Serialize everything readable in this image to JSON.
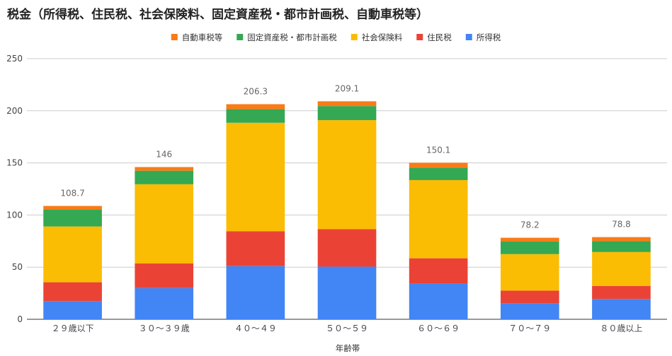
{
  "chart_data": {
    "type": "bar",
    "stacked": true,
    "title": "税金（所得税、住民税、社会保険料、固定資産税・都市計画税、自動車税等）",
    "xlabel": "年齢帯",
    "ylabel": "",
    "ylim": [
      0,
      250
    ],
    "yticks": [
      0,
      50,
      100,
      150,
      200,
      250
    ],
    "grid": true,
    "legend_position": "top",
    "categories": [
      "２９歳以下",
      "３０〜３９歳",
      "４０〜４９",
      "５０〜５９",
      "６０〜６９",
      "７０〜７９",
      "８０歳以上"
    ],
    "series": [
      {
        "name": "所得税",
        "color": "#4285F4",
        "values": [
          17.5,
          30,
          51,
          50.5,
          34.5,
          15.5,
          19.5
        ]
      },
      {
        "name": "住民税",
        "color": "#EA4335",
        "values": [
          18,
          23.5,
          33.5,
          36,
          24,
          12,
          12.5
        ]
      },
      {
        "name": "社会保険料",
        "color": "#FBBC04",
        "values": [
          53.5,
          76,
          104,
          104.5,
          75,
          35,
          32.5
        ]
      },
      {
        "name": "固定資産税・都市計画税",
        "color": "#34A853",
        "values": [
          16,
          13,
          13,
          13.5,
          12,
          12,
          10.5
        ]
      },
      {
        "name": "自動車税等",
        "color": "#FA7B17",
        "values": [
          3.7,
          3.5,
          4.8,
          4.6,
          4.6,
          3.7,
          3.8
        ]
      }
    ],
    "totals": [
      "108.7",
      "146",
      "206.3",
      "209.1",
      "150.1",
      "78.2",
      "78.8"
    ],
    "legend_order": [
      "自動車税等",
      "固定資産税・都市計画税",
      "社会保険料",
      "住民税",
      "所得税"
    ]
  }
}
